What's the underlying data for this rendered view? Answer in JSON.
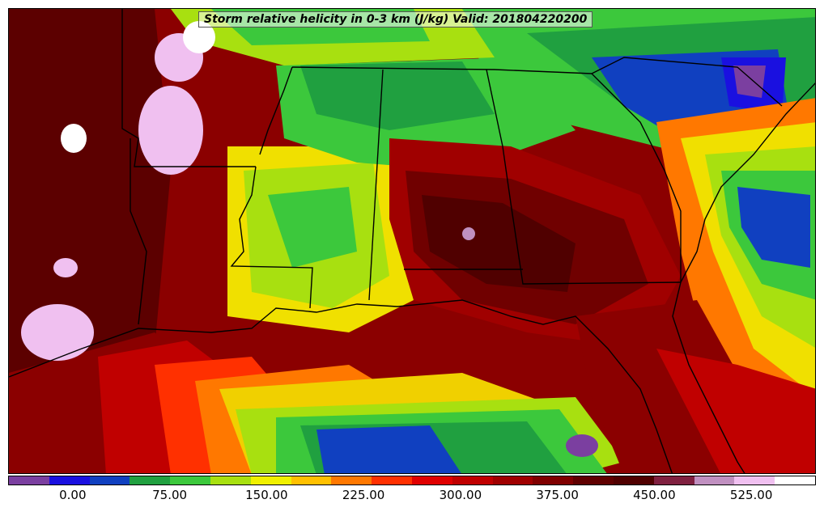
{
  "title": "Storm relative helicity in 0-3 km (J/kg) Valid: 201804220200",
  "colorbar": {
    "colors": [
      "#7b3fa0",
      "#1a10e0",
      "#1040c0",
      "#20a040",
      "#3cc83c",
      "#a8e010",
      "#f0f000",
      "#ffc000",
      "#ff7800",
      "#ff3000",
      "#e00000",
      "#c00000",
      "#a00000",
      "#800000",
      "#600000",
      "#500000",
      "#802040",
      "#c090c0",
      "#f0c0f0",
      "#ffffff"
    ],
    "tick_labels": [
      "0.00",
      "75.00",
      "150.00",
      "225.00",
      "300.00",
      "375.00",
      "450.00",
      "525.00"
    ],
    "tick_values": [
      0,
      75,
      150,
      225,
      300,
      375,
      450,
      525
    ],
    "min": -50,
    "max": 575
  }
}
